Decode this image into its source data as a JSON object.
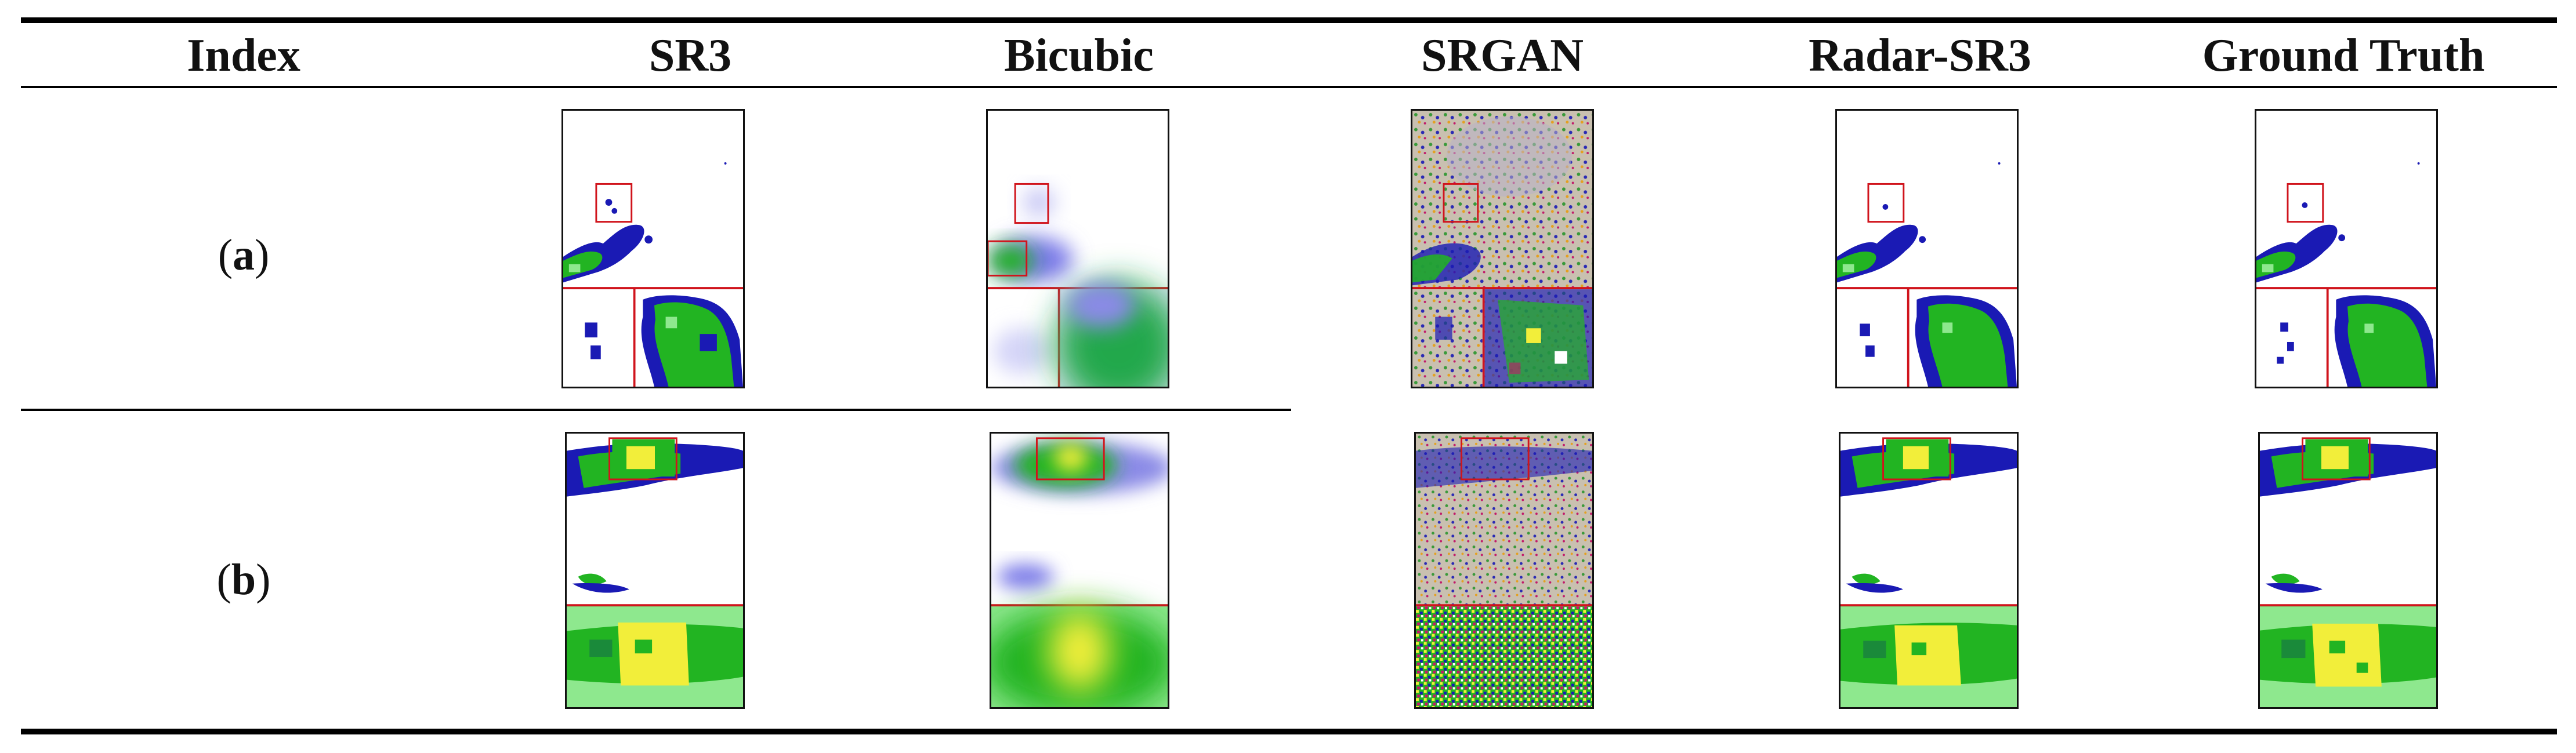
{
  "table": {
    "headers": [
      "Index",
      "SR3",
      "Bicubic",
      "SRGAN",
      "Radar-SR3",
      "Ground Truth"
    ],
    "rows": [
      {
        "index_label": "a"
      },
      {
        "index_label": "b"
      }
    ]
  },
  "colors": {
    "rule": "#000000",
    "zoom_box": "#d0141c",
    "radar_blue": "#1a1ab4",
    "radar_green": "#22b422",
    "radar_light_green": "#8ee88e",
    "radar_yellow": "#f2ee3a",
    "srgan_noise": "#c9c0b0"
  },
  "icons": {
    "thumbnail": "radar-reflectivity-map"
  }
}
